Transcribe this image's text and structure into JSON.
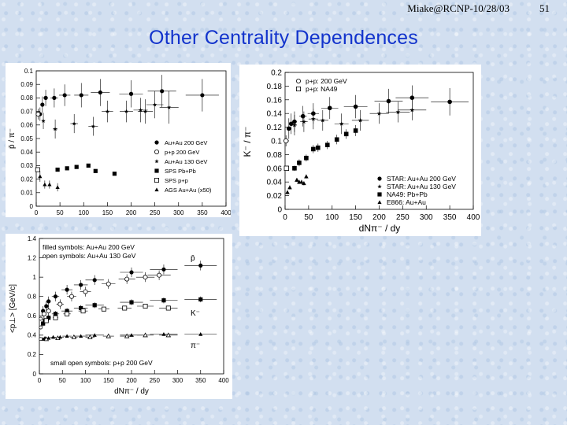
{
  "header": {
    "author": "Miake@RCNP-10/28/03",
    "page": "51"
  },
  "title": "Other Centrality Dependences",
  "colors": {
    "title": "#1233cc",
    "ink": "#000000",
    "background": "#d2dff0"
  },
  "chart_data": [
    {
      "type": "scatter",
      "title": "",
      "xlabel": "dN_{π-} / dy",
      "ylabel": "p̄ / π⁻",
      "xlim": [
        0,
        400
      ],
      "ylim": [
        0,
        0.1
      ],
      "xticks": [
        "0",
        "50",
        "100",
        "150",
        "200",
        "250",
        "300",
        "350",
        "400"
      ],
      "yticks": [
        "0",
        "0.01",
        "0.02",
        "0.03",
        "0.04",
        "0.05",
        "0.06",
        "0.07",
        "0.08",
        "0.09",
        "0.1"
      ],
      "legend": [
        "Au+Au 200 GeV",
        "p+p 200 GeV",
        "Au+Au 130 GeV",
        "SPS Pb+Pb",
        "SPS p+p",
        "AGS Au+Au (x50)"
      ],
      "series": [
        {
          "name": "Au+Au 200 GeV",
          "marker": "dot",
          "x": [
            8,
            13,
            20,
            38,
            60,
            95,
            135,
            200,
            265,
            350
          ],
          "y": [
            0.068,
            0.075,
            0.08,
            0.08,
            0.082,
            0.082,
            0.084,
            0.083,
            0.085,
            0.082
          ],
          "err": [
            0.005,
            0.006,
            0.006,
            0.007,
            0.008,
            0.009,
            0.01,
            0.01,
            0.012,
            0.012
          ],
          "xerr": [
            3,
            4,
            5,
            8,
            12,
            15,
            20,
            25,
            30,
            35
          ]
        },
        {
          "name": "p+p 200 GeV",
          "marker": "circle",
          "x": [
            4
          ],
          "y": [
            0.068
          ],
          "err": [
            0.004
          ],
          "xerr": [
            0
          ]
        },
        {
          "name": "Au+Au 130 GeV",
          "marker": "star",
          "x": [
            15,
            40,
            80,
            120,
            150,
            190,
            220,
            230,
            250,
            280
          ],
          "y": [
            0.063,
            0.057,
            0.061,
            0.059,
            0.07,
            0.07,
            0.071,
            0.07,
            0.075,
            0.073
          ],
          "err": [
            0.006,
            0.007,
            0.007,
            0.007,
            0.008,
            0.008,
            0.009,
            0.009,
            0.01,
            0.012
          ],
          "xerr": [
            3,
            5,
            8,
            10,
            12,
            14,
            15,
            16,
            18,
            20
          ]
        },
        {
          "name": "SPS Pb+Pb",
          "marker": "square",
          "x": [
            45,
            65,
            85,
            110,
            125,
            165
          ],
          "y": [
            0.027,
            0.028,
            0.029,
            0.03,
            0.026,
            0.024
          ],
          "err": [
            0,
            0,
            0,
            0,
            0,
            0
          ],
          "xerr": [
            0,
            0,
            0,
            0,
            0,
            0
          ]
        },
        {
          "name": "SPS p+p",
          "marker": "opensquare",
          "x": [
            3
          ],
          "y": [
            0.027
          ],
          "err": [
            0
          ],
          "xerr": [
            0
          ]
        },
        {
          "name": "AGS Au+Au (x50)",
          "marker": "triangle",
          "x": [
            8,
            18,
            28,
            45
          ],
          "y": [
            0.022,
            0.016,
            0.016,
            0.014
          ],
          "err": [
            0.004,
            0.003,
            0.003,
            0.003
          ],
          "xerr": [
            0,
            0,
            0,
            0
          ]
        }
      ]
    },
    {
      "type": "scatter",
      "title": "",
      "xlabel": "dN_{π-} / dy",
      "ylabel": "K⁻ / π⁻",
      "xlim": [
        0,
        400
      ],
      "ylim": [
        0,
        0.2
      ],
      "xticks": [
        "0",
        "50",
        "100",
        "150",
        "200",
        "250",
        "300",
        "350",
        "400"
      ],
      "yticks": [
        "0",
        "0.02",
        "0.04",
        "0.06",
        "0.08",
        "0.1",
        "0.12",
        "0.14",
        "0.16",
        "0.18",
        "0.2"
      ],
      "legend_top": [
        "p+p: 200 GeV",
        "p+p: NA49"
      ],
      "legend": [
        "STAR: Au+Au 200 GeV",
        "STAR: Au+Au 130 GeV",
        "NA49: Pb+Pb",
        "E866: Au+Au"
      ],
      "series": [
        {
          "name": "STAR: Au+Au 200 GeV",
          "marker": "dot",
          "x": [
            8,
            13,
            20,
            38,
            60,
            95,
            150,
            220,
            270,
            350
          ],
          "y": [
            0.118,
            0.125,
            0.128,
            0.136,
            0.14,
            0.148,
            0.15,
            0.158,
            0.163,
            0.157
          ],
          "err": [
            0.015,
            0.015,
            0.015,
            0.015,
            0.015,
            0.016,
            0.017,
            0.018,
            0.018,
            0.02
          ],
          "xerr": [
            3,
            4,
            5,
            8,
            12,
            18,
            25,
            30,
            35,
            40
          ]
        },
        {
          "name": "STAR: Au+Au 130 GeV",
          "marker": "star",
          "x": [
            20,
            40,
            60,
            80,
            120,
            160,
            200,
            240,
            270
          ],
          "y": [
            0.123,
            0.128,
            0.132,
            0.13,
            0.125,
            0.13,
            0.14,
            0.142,
            0.145
          ],
          "err": [
            0.015,
            0.015,
            0.015,
            0.015,
            0.015,
            0.015,
            0.015,
            0.015,
            0.015
          ],
          "xerr": [
            5,
            8,
            10,
            12,
            15,
            18,
            20,
            25,
            30
          ]
        },
        {
          "name": "NA49: Pb+Pb",
          "marker": "square",
          "x": [
            20,
            30,
            45,
            60,
            70,
            90,
            110,
            130,
            150
          ],
          "y": [
            0.06,
            0.068,
            0.075,
            0.088,
            0.09,
            0.094,
            0.102,
            0.11,
            0.115
          ],
          "err": [
            0.004,
            0.005,
            0.005,
            0.006,
            0.006,
            0.006,
            0.007,
            0.007,
            0.008
          ],
          "xerr": [
            0,
            0,
            0,
            0,
            0,
            0,
            0,
            0,
            0
          ]
        },
        {
          "name": "E866: Au+Au",
          "marker": "triangle",
          "x": [
            5,
            10,
            25,
            30,
            35,
            40,
            45
          ],
          "y": [
            0.025,
            0.032,
            0.043,
            0.04,
            0.04,
            0.038,
            0.048
          ],
          "err": [
            0.003,
            0.003,
            0.003,
            0.003,
            0.003,
            0.003,
            0.003
          ],
          "xerr": [
            0,
            0,
            0,
            0,
            0,
            0,
            0
          ]
        },
        {
          "name": "p+p: 200 GeV",
          "marker": "circle",
          "x": [
            2
          ],
          "y": [
            0.1
          ],
          "err": [
            0.008
          ],
          "xerr": [
            0
          ]
        },
        {
          "name": "p+p: NA49",
          "marker": "opensquare",
          "x": [
            3
          ],
          "y": [
            0.06
          ],
          "err": [
            0
          ],
          "xerr": [
            0
          ]
        }
      ]
    },
    {
      "type": "scatter",
      "title": "",
      "xlabel": "dN_{π-} / dy",
      "ylabel": "<p⊥> [GeV/c]",
      "xlim": [
        0,
        400
      ],
      "ylim": [
        0,
        1.4
      ],
      "xticks": [
        "0",
        "50",
        "100",
        "150",
        "200",
        "250",
        "300",
        "350",
        "400"
      ],
      "yticks": [
        "0",
        "0.2",
        "0.4",
        "0.6",
        "0.8",
        "1",
        "1.2",
        "1.4"
      ],
      "annotations": [
        "filled symbols: Au+Au 200 GeV",
        "open symbols: Au+Au 130 GeV",
        "small open symbols: p+p 200 GeV"
      ],
      "series_labels": [
        "p̄",
        "K⁻",
        "π⁻"
      ],
      "series": [
        {
          "name": "p̄ Au+Au 200 GeV",
          "marker": "dot",
          "x": [
            8,
            15,
            20,
            35,
            60,
            90,
            120,
            200,
            270,
            350
          ],
          "y": [
            0.65,
            0.7,
            0.75,
            0.8,
            0.87,
            0.92,
            0.97,
            1.05,
            1.08,
            1.12
          ],
          "err": [
            0.05,
            0.05,
            0.05,
            0.05,
            0.05,
            0.05,
            0.05,
            0.05,
            0.05,
            0.05
          ],
          "xerr": [
            3,
            4,
            5,
            8,
            12,
            15,
            20,
            25,
            30,
            35
          ]
        },
        {
          "name": "p̄ Au+Au 130 GeV",
          "marker": "circle",
          "x": [
            10,
            20,
            45,
            70,
            100,
            150,
            190,
            230,
            260
          ],
          "y": [
            0.62,
            0.65,
            0.72,
            0.8,
            0.85,
            0.93,
            0.98,
            1.0,
            1.02
          ],
          "err": [
            0.05,
            0.05,
            0.05,
            0.05,
            0.05,
            0.05,
            0.05,
            0.05,
            0.05
          ],
          "xerr": [
            3,
            5,
            8,
            10,
            12,
            15,
            18,
            20,
            25
          ]
        },
        {
          "name": "K⁻ Au+Au 200 GeV",
          "marker": "square",
          "x": [
            8,
            12,
            20,
            35,
            60,
            90,
            120,
            200,
            270,
            350
          ],
          "y": [
            0.52,
            0.55,
            0.58,
            0.62,
            0.65,
            0.68,
            0.71,
            0.74,
            0.76,
            0.77
          ],
          "err": [
            0.03,
            0.03,
            0.03,
            0.03,
            0.03,
            0.03,
            0.03,
            0.03,
            0.03,
            0.03
          ],
          "xerr": [
            3,
            4,
            5,
            8,
            12,
            15,
            20,
            25,
            30,
            35
          ]
        },
        {
          "name": "K⁻ Au+Au 130 GeV",
          "marker": "opensquare",
          "x": [
            15,
            35,
            60,
            95,
            140,
            185,
            230,
            280
          ],
          "y": [
            0.55,
            0.58,
            0.62,
            0.65,
            0.67,
            0.68,
            0.7,
            0.68
          ],
          "err": [
            0.02,
            0.02,
            0.02,
            0.02,
            0.02,
            0.02,
            0.02,
            0.02
          ],
          "xerr": [
            4,
            6,
            8,
            10,
            12,
            15,
            18,
            20
          ]
        },
        {
          "name": "π⁻ Au+Au 200 GeV",
          "marker": "triangle",
          "x": [
            8,
            12,
            20,
            30,
            45,
            60,
            90,
            120,
            200,
            270,
            350
          ],
          "y": [
            0.36,
            0.37,
            0.37,
            0.38,
            0.38,
            0.39,
            0.39,
            0.4,
            0.4,
            0.41,
            0.41
          ],
          "err": [
            0.01,
            0.01,
            0.01,
            0.01,
            0.01,
            0.01,
            0.01,
            0.01,
            0.01,
            0.01,
            0.01
          ],
          "xerr": [
            3,
            4,
            5,
            6,
            8,
            10,
            15,
            20,
            25,
            30,
            35
          ]
        },
        {
          "name": "π⁻ Au+Au 130 GeV",
          "marker": "opentriangle",
          "x": [
            15,
            40,
            75,
            110,
            150,
            190,
            230,
            280
          ],
          "y": [
            0.36,
            0.37,
            0.38,
            0.38,
            0.39,
            0.39,
            0.4,
            0.4
          ],
          "err": [
            0.01,
            0.01,
            0.01,
            0.01,
            0.01,
            0.01,
            0.01,
            0.01
          ],
          "xerr": [
            4,
            6,
            8,
            10,
            12,
            15,
            18,
            20
          ]
        },
        {
          "name": "p+p 200 GeV",
          "marker": "smallcircle",
          "x": [
            3,
            3,
            3
          ],
          "y": [
            0.57,
            0.48,
            0.36
          ],
          "err": [
            0.02,
            0.02,
            0.01
          ],
          "xerr": [
            0,
            0,
            0
          ]
        }
      ]
    }
  ]
}
